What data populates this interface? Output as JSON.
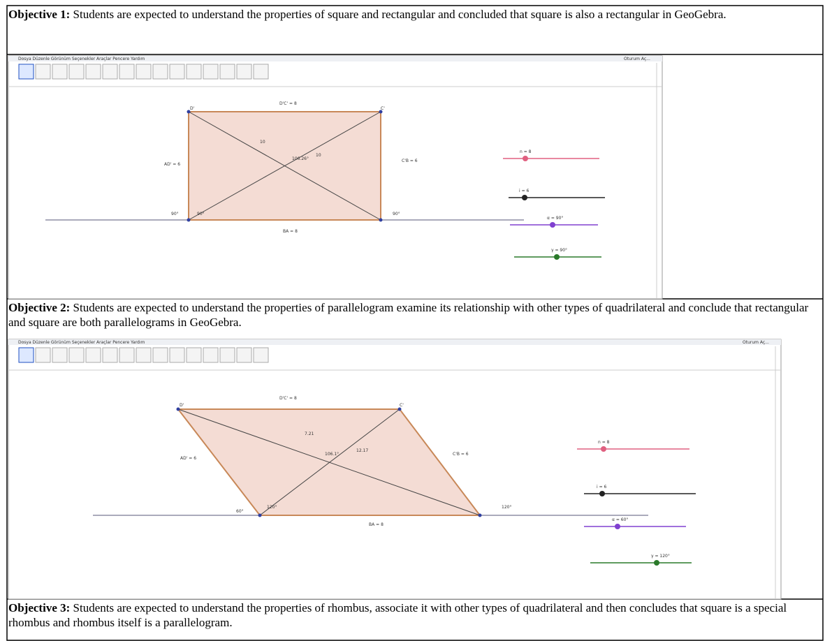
{
  "objectives": [
    {
      "label": "Objective 1:",
      "text": "Students are expected to understand the properties of square and rectangular and concluded that square is also a rectangular in GeoGebra."
    },
    {
      "label": "Objective 2:",
      "text": "Students are expected to understand the properties of parallelogram examine its relationship with other types of quadrilateral and conclude that rectangular and square are both parallelograms in GeoGebra."
    },
    {
      "label": "Objective 3:",
      "text": "Students are expected to understand the properties of rhombus, associate it with other types of quadrilateral and then concludes that square is a special rhombus and rhombus itself is a parallelogram."
    }
  ],
  "screens": [
    {
      "menu": "Dosya  Düzenle  Görünüm  Seçenekler  Araçlar  Pencere  Yardım",
      "login": "Oturum Aç...",
      "labels": {
        "top": "D'C' = 8",
        "left": "AD' = 6",
        "right": "C'B = 6",
        "bottom": "BA = 8",
        "diag1": "10",
        "diag2": "10",
        "angle": "106.26°",
        "angleA1": "90°",
        "angleA2": "90°",
        "angleB": "90°",
        "pD": "D'",
        "pC": "C'"
      },
      "sliders": [
        "n = 8",
        "i = 6",
        "α = 90°",
        "γ = 90°"
      ]
    },
    {
      "menu": "Dosya  Düzenle  Görünüm  Seçenekler  Araçlar  Pencere  Yardım",
      "login": "Oturum Aç...",
      "labels": {
        "top": "D'C' = 8",
        "left": "AD' = 6",
        "right": "C'B = 6",
        "bottom": "BA = 8",
        "diag1": "7.21",
        "diag2": "12.17",
        "angle": "106.1°",
        "angleA1": "60°",
        "angleA2": "120°",
        "angleB": "120°",
        "pD": "D'",
        "pC": "C'"
      },
      "sliders": [
        "n = 8",
        "i = 6",
        "α = 60°",
        "γ = 120°"
      ]
    }
  ]
}
